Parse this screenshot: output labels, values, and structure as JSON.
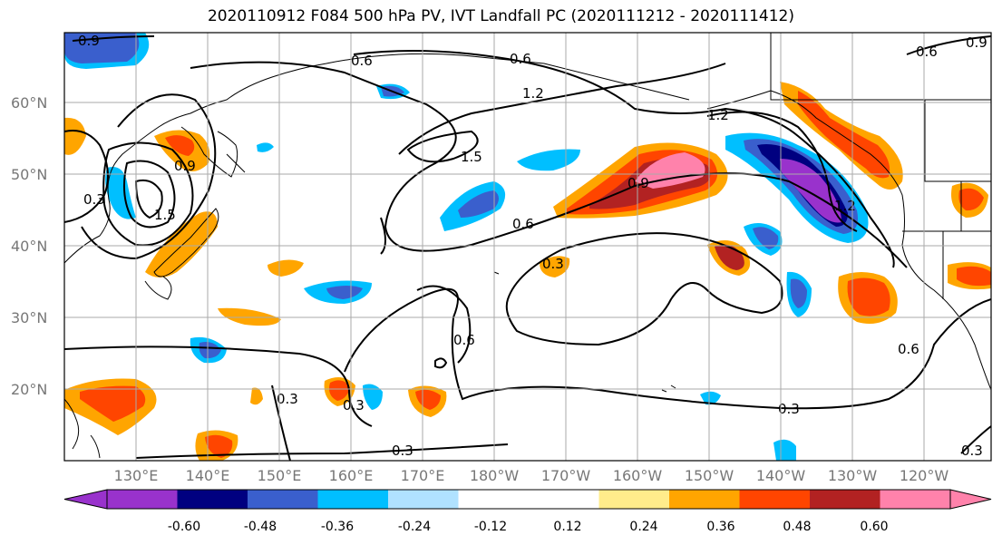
{
  "title": "2020110912 F084 500 hPa PV, IVT Landfall PC (2020111212 - 2020111412)",
  "lat_labels": [
    "60°N",
    "50°N",
    "40°N",
    "30°N",
    "20°N"
  ],
  "lon_labels": [
    "130°E",
    "140°E",
    "150°E",
    "160°E",
    "170°E",
    "180°W",
    "170°W",
    "160°W",
    "150°W",
    "140°W",
    "130°W",
    "120°W"
  ],
  "colorbar": {
    "colors": [
      "#9932cc",
      "#000080",
      "#3a5fcd",
      "#00bfff",
      "#b0e2ff",
      "#ffffff",
      "#ffffff",
      "#ffec8b",
      "#ffa500",
      "#ff4500",
      "#b22222",
      "#ff82ab"
    ],
    "ticks": [
      "-0.60",
      "-0.48",
      "-0.36",
      "-0.24",
      "-0.12",
      "0.12",
      "0.24",
      "0.36",
      "0.48",
      "0.60"
    ]
  },
  "contour_labels": [
    "0.9",
    "0.6",
    "0.6",
    "1.2",
    "1.2",
    "1.5",
    "0.9",
    "0.6",
    "0.3",
    "0.6",
    "0.3",
    "0.3",
    "0.3",
    "0.3",
    "1.2",
    "0.6",
    "0.3",
    "0.9",
    "0.6",
    "0.9",
    "1.5",
    "0.3"
  ]
}
